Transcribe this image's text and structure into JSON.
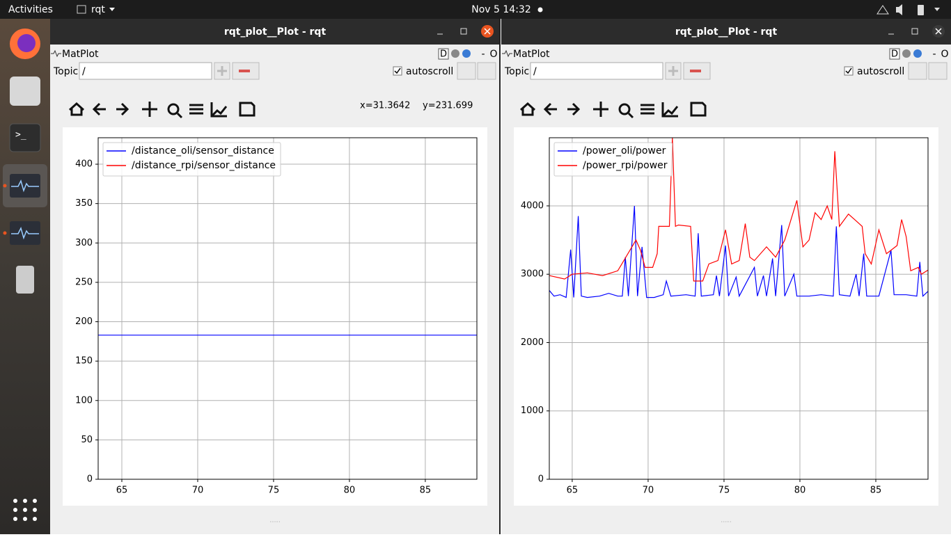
{
  "top_bar": {
    "activities": "Activities",
    "app": "rqt",
    "clock": "Nov 5  14:32"
  },
  "windows": [
    {
      "title": "rqt_plot__Plot - rqt",
      "plugin": "MatPlot",
      "plugin_controls": [
        "D",
        "-",
        "O"
      ],
      "topic_label": "Topic",
      "topic_value": "/",
      "autoscroll": "autoscroll",
      "cursor": [
        "x=31.3642",
        "y=231.699"
      ]
    },
    {
      "title": "rqt_plot__Plot - rqt",
      "plugin": "MatPlot",
      "plugin_controls": [
        "D",
        "-",
        "O"
      ],
      "topic_label": "Topic",
      "topic_value": "/",
      "autoscroll": "autoscroll"
    }
  ],
  "chart_data": [
    {
      "type": "line",
      "xlim": [
        63.44,
        88.4
      ],
      "ylim": [
        0,
        433.6
      ],
      "xticks": [
        65,
        70,
        75,
        80,
        85
      ],
      "yticks": [
        0,
        50,
        100,
        150,
        200,
        250,
        300,
        350,
        400
      ],
      "grid": true,
      "legend": "upper left",
      "series": [
        {
          "name": "/distance_oli/sensor_distance",
          "color": "#0000ff",
          "x": [
            63.44,
            88.4
          ],
          "values": [
            183,
            183
          ]
        },
        {
          "name": "/distance_rpi/sensor_distance",
          "color": "#ff0000",
          "x": [
            63.44,
            88.4
          ],
          "values": [
            null,
            null
          ]
        }
      ]
    },
    {
      "type": "line",
      "xlim": [
        63.49,
        88.44
      ],
      "ylim": [
        0,
        4997
      ],
      "xticks": [
        65,
        70,
        75,
        80,
        85
      ],
      "yticks": [
        0,
        1000,
        2000,
        3000,
        4000
      ],
      "grid": true,
      "legend": "upper left",
      "series": [
        {
          "name": "/power_oli/power",
          "color": "#0000ff",
          "x": [
            63.5,
            63.8,
            64.2,
            64.6,
            64.9,
            65.1,
            65.4,
            65.6,
            66.0,
            66.8,
            67.4,
            68.0,
            68.3,
            68.5,
            68.7,
            69.1,
            69.3,
            69.6,
            69.9,
            70.4,
            71.0,
            71.2,
            71.5,
            72.5,
            73.1,
            73.3,
            73.5,
            74.3,
            74.5,
            74.7,
            75.1,
            75.3,
            75.8,
            76.0,
            77.0,
            77.2,
            77.6,
            77.8,
            78.2,
            78.4,
            78.8,
            79.0,
            79.6,
            79.8,
            80.6,
            81.4,
            82.2,
            82.4,
            82.6,
            83.3,
            83.7,
            83.9,
            84.2,
            84.4,
            85.2,
            86.0,
            86.2,
            87.0,
            87.7,
            87.9,
            88.1,
            88.44
          ],
          "values": [
            2760,
            2680,
            2700,
            2660,
            3360,
            2660,
            3850,
            2680,
            2660,
            2680,
            2720,
            2680,
            2680,
            3250,
            2680,
            4000,
            2680,
            3400,
            2660,
            2660,
            2700,
            2900,
            2680,
            2700,
            2680,
            3600,
            2680,
            2700,
            2980,
            2680,
            3420,
            2680,
            2960,
            2680,
            3100,
            2680,
            2980,
            2680,
            3230,
            2680,
            3720,
            2680,
            3000,
            2680,
            2680,
            2700,
            2680,
            3700,
            2700,
            2680,
            3000,
            2680,
            3300,
            2680,
            2680,
            3350,
            2700,
            2700,
            2680,
            3180,
            2680,
            2750
          ]
        },
        {
          "name": "/power_rpi/power",
          "color": "#ff0000",
          "x": [
            63.5,
            64.5,
            65.0,
            66.0,
            67.0,
            68.0,
            68.4,
            69.2,
            69.5,
            69.8,
            70.3,
            70.6,
            70.7,
            71.4,
            71.6,
            71.8,
            72.0,
            72.8,
            73.0,
            73.6,
            74.0,
            74.6,
            75.1,
            75.5,
            76.0,
            76.4,
            76.7,
            77.0,
            77.8,
            78.4,
            79.0,
            79.8,
            80.2,
            80.6,
            81.0,
            81.4,
            81.8,
            82.1,
            82.3,
            82.6,
            83.2,
            83.6,
            84.1,
            84.3,
            84.7,
            85.2,
            85.7,
            86.4,
            86.7,
            87.0,
            87.3,
            87.8,
            88.0,
            88.44
          ],
          "values": [
            2980,
            2930,
            3000,
            3020,
            2980,
            3050,
            3200,
            3500,
            3350,
            3100,
            3100,
            3300,
            3700,
            3700,
            4997,
            3700,
            3720,
            3700,
            2900,
            2900,
            3150,
            3200,
            3650,
            3150,
            3200,
            3740,
            3250,
            3200,
            3400,
            3250,
            3500,
            4080,
            3400,
            3500,
            3900,
            3800,
            4000,
            3800,
            4800,
            3700,
            3880,
            3800,
            3700,
            3300,
            3150,
            3650,
            3300,
            3420,
            3800,
            3550,
            3050,
            3100,
            3000,
            3060
          ]
        }
      ]
    }
  ]
}
